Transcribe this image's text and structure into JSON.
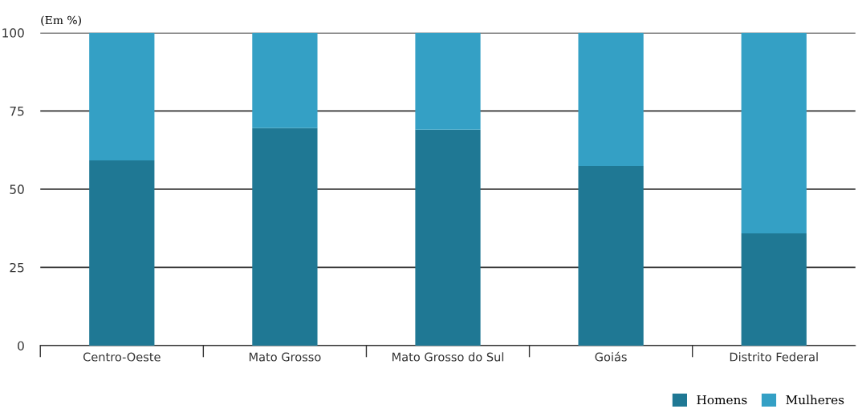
{
  "chart_data": {
    "type": "bar",
    "stacked": true,
    "ylabel": "(Em %)",
    "categories": [
      "Centro-Oeste",
      "Mato Grosso",
      "Mato Grosso do Sul",
      "Goiás",
      "Distrito Federal"
    ],
    "series": [
      {
        "name": "Homens",
        "color": "#1f7894",
        "values": [
          59.2,
          69.5,
          69.0,
          57.4,
          35.9
        ]
      },
      {
        "name": "Mulheres",
        "color": "#34a0c5",
        "values": [
          40.8,
          30.5,
          31.0,
          42.6,
          64.1
        ]
      }
    ],
    "ylim": [
      0,
      100
    ],
    "yticks": [
      0,
      25,
      50,
      75,
      100
    ],
    "grid": "y",
    "legend": "bottom right"
  }
}
